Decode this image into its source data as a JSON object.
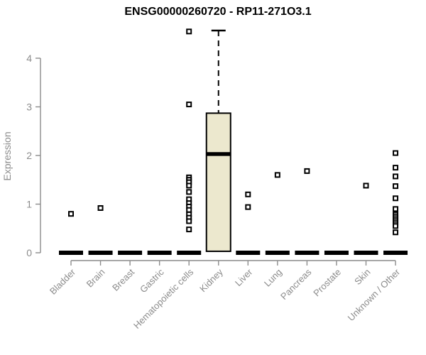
{
  "chart_data": {
    "type": "boxplot",
    "title": "ENSG00000260720 - RP11-271O3.1",
    "ylabel": "Expression",
    "xlabel": "",
    "ylim": [
      0,
      4.6
    ],
    "yticks": [
      0,
      1,
      2,
      3,
      4
    ],
    "grid": false,
    "legend": "none",
    "categories": [
      "Bladder",
      "Brain",
      "Breast",
      "Gastric",
      "Hematopoietic cells",
      "Kidney",
      "Liver",
      "Lung",
      "Pancreas",
      "Prostate",
      "Skin",
      "Unknown / Other"
    ],
    "boxes": [
      {
        "category": "Bladder",
        "median": 0,
        "q1": 0,
        "q3": 0,
        "whisker_low": 0,
        "whisker_high": 0,
        "outliers": [
          0.8
        ]
      },
      {
        "category": "Brain",
        "median": 0,
        "q1": 0,
        "q3": 0,
        "whisker_low": 0,
        "whisker_high": 0,
        "outliers": [
          0.92
        ]
      },
      {
        "category": "Breast",
        "median": 0,
        "q1": 0,
        "q3": 0,
        "whisker_low": 0,
        "whisker_high": 0,
        "outliers": []
      },
      {
        "category": "Gastric",
        "median": 0,
        "q1": 0,
        "q3": 0,
        "whisker_low": 0,
        "whisker_high": 0,
        "outliers": []
      },
      {
        "category": "Hematopoietic cells",
        "median": 0,
        "q1": 0,
        "q3": 0,
        "whisker_low": 0,
        "whisker_high": 0,
        "outliers": [
          4.55,
          3.05,
          1.55,
          1.5,
          1.45,
          1.38,
          1.25,
          1.1,
          1.02,
          0.95,
          0.88,
          0.79,
          0.72,
          0.65,
          0.48
        ]
      },
      {
        "category": "Kidney",
        "median": 2.03,
        "q1": 0.03,
        "q3": 2.87,
        "whisker_low": 0.03,
        "whisker_high": 4.57,
        "outliers": []
      },
      {
        "category": "Liver",
        "median": 0,
        "q1": 0,
        "q3": 0,
        "whisker_low": 0,
        "whisker_high": 0,
        "outliers": [
          1.2,
          0.94
        ]
      },
      {
        "category": "Lung",
        "median": 0,
        "q1": 0,
        "q3": 0,
        "whisker_low": 0,
        "whisker_high": 0,
        "outliers": [
          1.6
        ]
      },
      {
        "category": "Pancreas",
        "median": 0,
        "q1": 0,
        "q3": 0,
        "whisker_low": 0,
        "whisker_high": 0,
        "outliers": [
          1.68
        ]
      },
      {
        "category": "Prostate",
        "median": 0,
        "q1": 0,
        "q3": 0,
        "whisker_low": 0,
        "whisker_high": 0,
        "outliers": []
      },
      {
        "category": "Skin",
        "median": 0,
        "q1": 0,
        "q3": 0,
        "whisker_low": 0,
        "whisker_high": 0,
        "outliers": [
          1.38
        ]
      },
      {
        "category": "Unknown / Other",
        "median": 0,
        "q1": 0,
        "q3": 0,
        "whisker_low": 0,
        "whisker_high": 0,
        "outliers": [
          2.05,
          1.75,
          1.57,
          1.37,
          1.12,
          0.9,
          0.79,
          0.75,
          0.71,
          0.67,
          0.63,
          0.59,
          0.55,
          0.42
        ]
      }
    ],
    "colors": {
      "box_fill": "#ece8ce",
      "box_stroke": "#000000",
      "median": "#000000",
      "outlier_stroke": "#000000",
      "outlier_fill": "#ffffff",
      "axis": "#8c8c8c",
      "title_text": "#000000",
      "background": "#ffffff"
    }
  }
}
